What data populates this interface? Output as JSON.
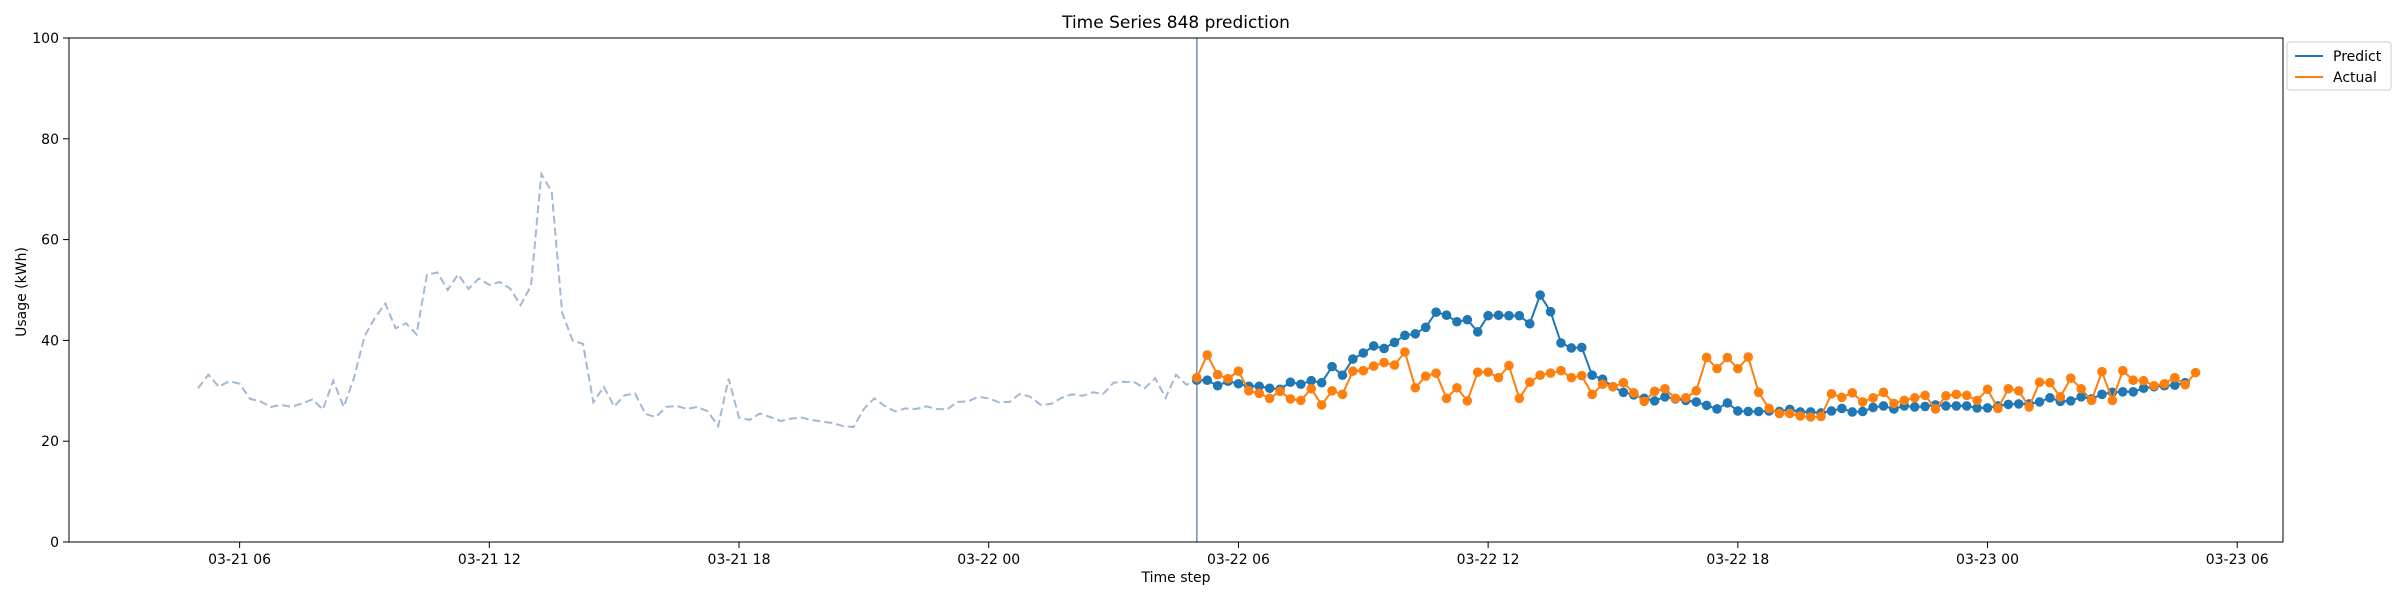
{
  "chart_data": {
    "type": "line",
    "title": "Time Series 848 prediction",
    "xlabel": "Time step",
    "ylabel": "Usage (kWh)",
    "xlim": [
      "2024-03-21 01:54",
      "2024-03-23 07:06"
    ],
    "ylim": [
      0,
      100
    ],
    "xticks": [
      {
        "value": "2024-03-21 06:00",
        "label": "03-21 06"
      },
      {
        "value": "2024-03-21 12:00",
        "label": "03-21 12"
      },
      {
        "value": "2024-03-21 18:00",
        "label": "03-21 18"
      },
      {
        "value": "2024-03-22 00:00",
        "label": "03-22 00"
      },
      {
        "value": "2024-03-22 06:00",
        "label": "03-22 06"
      },
      {
        "value": "2024-03-22 12:00",
        "label": "03-22 12"
      },
      {
        "value": "2024-03-22 18:00",
        "label": "03-22 18"
      },
      {
        "value": "2024-03-23 00:00",
        "label": "03-23 00"
      },
      {
        "value": "2024-03-23 06:00",
        "label": "03-23 06"
      }
    ],
    "yticks": [
      0,
      20,
      40,
      60,
      80,
      100
    ],
    "grid": false,
    "legend_position": "upper-right-outside",
    "forecast_start": "2024-03-22 05:00",
    "history": {
      "color": "#a3b8d3",
      "style": "dashed",
      "start": "2024-03-21 05:00",
      "step_minutes": 15,
      "values": [
        30.5,
        33.2,
        30.8,
        31.9,
        31.4,
        28.4,
        27.9,
        26.8,
        27.2,
        26.8,
        27.5,
        28.3,
        26.3,
        32.0,
        26.8,
        32.6,
        40.8,
        44.5,
        47.3,
        42.4,
        43.4,
        41.2,
        53.0,
        53.5,
        50.0,
        53.1,
        50.2,
        52.3,
        51.0,
        51.6,
        50.3,
        47.0,
        50.8,
        73.0,
        69.5,
        45.5,
        40.0,
        39.3,
        27.7,
        30.8,
        26.9,
        29.1,
        29.5,
        25.4,
        24.8,
        26.8,
        27.0,
        26.4,
        26.8,
        25.9,
        23.0,
        32.4,
        24.7,
        24.2,
        25.5,
        24.8,
        24.0,
        24.5,
        24.7,
        24.2,
        23.9,
        23.6,
        23.0,
        22.8,
        26.4,
        28.5,
        27.0,
        25.9,
        26.5,
        26.4,
        26.9,
        26.4,
        26.3,
        27.8,
        27.9,
        28.8,
        28.5,
        27.7,
        27.8,
        29.4,
        28.8,
        27.2,
        27.4,
        28.6,
        29.3,
        29.0,
        29.7,
        29.4,
        31.6,
        31.8,
        31.7,
        30.5,
        32.5,
        28.6,
        33.2,
        31.2,
        32.1
      ]
    },
    "series": [
      {
        "name": "Predict",
        "color": "#1f77b4",
        "start": "2024-03-22 05:00",
        "step_minutes": 15,
        "values": [
          32.1,
          32.1,
          31.0,
          31.9,
          31.4,
          30.9,
          30.9,
          30.5,
          30.3,
          31.7,
          31.3,
          32.0,
          31.6,
          34.8,
          33.1,
          36.3,
          37.5,
          38.9,
          38.4,
          39.6,
          41.0,
          41.3,
          42.6,
          45.6,
          45.0,
          43.7,
          44.1,
          41.7,
          44.9,
          45.0,
          44.9,
          44.9,
          43.3,
          49.0,
          45.7,
          39.5,
          38.5,
          38.6,
          33.1,
          32.3,
          30.8,
          29.7,
          29.2,
          28.5,
          28.0,
          28.8,
          28.4,
          28.1,
          27.8,
          27.1,
          26.4,
          27.6,
          26.0,
          25.9,
          25.9,
          26.0,
          25.9,
          26.3,
          25.8,
          25.8,
          25.6,
          26.0,
          26.5,
          25.8,
          25.9,
          26.7,
          27.0,
          26.4,
          27.0,
          26.8,
          26.9,
          27.2,
          27.0,
          27.0,
          27.0,
          26.6,
          26.6,
          27.0,
          27.3,
          27.4,
          27.4,
          27.8,
          28.6,
          27.9,
          28.0,
          28.8,
          28.4,
          29.3,
          29.7,
          29.8,
          29.8,
          30.5,
          30.8,
          31.0,
          31.1,
          31.6
        ]
      },
      {
        "name": "Actual",
        "color": "#ff7f0e",
        "start": "2024-03-22 05:00",
        "step_minutes": 15,
        "values": [
          32.6,
          37.1,
          33.2,
          32.4,
          33.9,
          30.0,
          29.5,
          28.5,
          29.9,
          28.4,
          28.1,
          30.4,
          27.2,
          30.0,
          29.3,
          33.9,
          34.0,
          34.9,
          35.6,
          35.1,
          37.7,
          30.6,
          32.9,
          33.5,
          28.5,
          30.6,
          28.0,
          33.7,
          33.7,
          32.6,
          35.0,
          28.5,
          31.7,
          33.1,
          33.5,
          34.0,
          32.6,
          33.0,
          29.3,
          31.3,
          30.8,
          31.6,
          29.6,
          27.9,
          29.9,
          30.4,
          28.5,
          28.6,
          30.0,
          36.6,
          34.4,
          36.6,
          34.4,
          36.7,
          29.7,
          26.5,
          25.5,
          25.5,
          25.0,
          24.8,
          24.9,
          29.4,
          28.7,
          29.6,
          27.8,
          28.6,
          29.7,
          27.5,
          28.1,
          28.6,
          29.1,
          26.4,
          29.0,
          29.3,
          29.1,
          28.1,
          30.3,
          26.5,
          30.4,
          30.0,
          26.8,
          31.7,
          31.6,
          28.8,
          32.5,
          30.4,
          28.1,
          33.8,
          28.1,
          34.0,
          32.1,
          32.0,
          31.0,
          31.4,
          32.6,
          31.2,
          33.6
        ]
      }
    ]
  }
}
